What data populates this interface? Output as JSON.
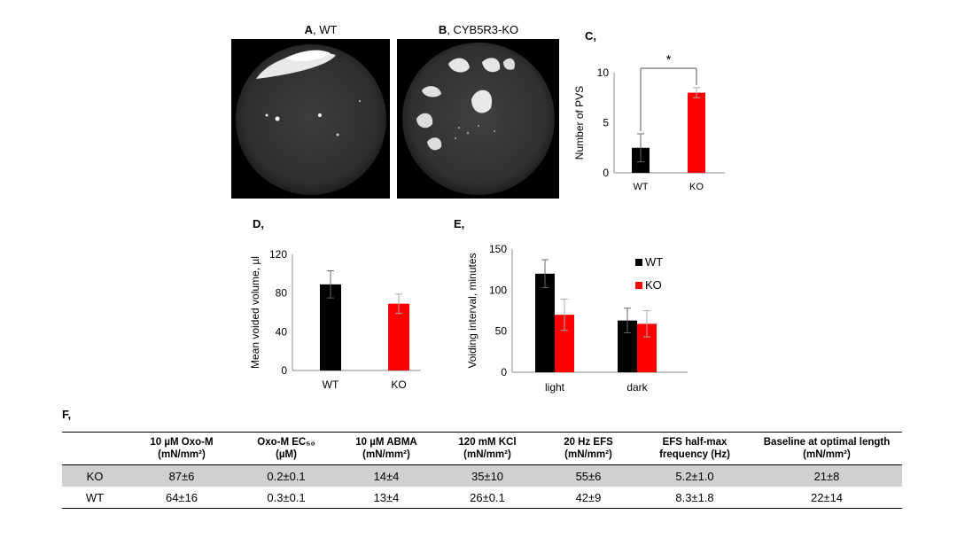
{
  "panels": {
    "a": {
      "letter": "A",
      "rest": ", WT"
    },
    "b": {
      "letter": "B",
      "rest": ", CYB5R3-KO"
    },
    "c": {
      "label": "C,"
    },
    "d": {
      "label": "D,"
    },
    "e": {
      "label": "E,"
    },
    "f": {
      "label": "F,"
    }
  },
  "chart_data": [
    {
      "panel": "C",
      "type": "bar",
      "categories": [
        "WT",
        "KO"
      ],
      "values": [
        2.5,
        8.0
      ],
      "errors": [
        1.4,
        0.5
      ],
      "colors": [
        "#000000",
        "#ff0000"
      ],
      "ylabel": "Number of PVS",
      "ylim": [
        0,
        10
      ],
      "yticks": [
        "0",
        "5",
        "10"
      ],
      "annotation": "*",
      "grid": false
    },
    {
      "panel": "D",
      "type": "bar",
      "categories": [
        "WT",
        "KO"
      ],
      "values": [
        89,
        69
      ],
      "errors": [
        14,
        10
      ],
      "colors": [
        "#000000",
        "#ff0000"
      ],
      "ylabel": "Mean voided volume, µl",
      "ylim": [
        0,
        120
      ],
      "yticks": [
        "0",
        "40",
        "80",
        "120"
      ],
      "grid": false
    },
    {
      "panel": "E",
      "type": "bar",
      "categories": [
        "light",
        "dark"
      ],
      "series": [
        {
          "name": "WT",
          "values": [
            120,
            63
          ],
          "errors": [
            17,
            15
          ],
          "color": "#000000"
        },
        {
          "name": "KO",
          "values": [
            70,
            59
          ],
          "errors": [
            19,
            16
          ],
          "color": "#ff0000"
        }
      ],
      "ylabel": "Voiding interval, minutes",
      "ylim": [
        0,
        150
      ],
      "yticks": [
        "0",
        "50",
        "100",
        "150"
      ],
      "legend": "top-right",
      "grid": false
    }
  ],
  "table": {
    "headers": [
      {
        "l1": "",
        "l2": ""
      },
      {
        "l1": "10 µM  Oxo-M",
        "l2": "(mN/mm²)"
      },
      {
        "l1": "Oxo-M EC₅₀",
        "l2": "(µM)"
      },
      {
        "l1": "10 µM ABMA",
        "l2": "(mN/mm²)"
      },
      {
        "l1": "120 mM KCl",
        "l2": "(mN/mm²)"
      },
      {
        "l1": "20 Hz EFS",
        "l2": "(mN/mm²)"
      },
      {
        "l1": "EFS half-max",
        "l2": "frequency (Hz)"
      },
      {
        "l1": "Baseline at optimal length",
        "l2": "(mN/mm²)"
      }
    ],
    "rows": [
      [
        "KO",
        "87±6",
        "0.2±0.1",
        "14±4",
        "35±10",
        "55±6",
        "5.2±1.0",
        "21±8"
      ],
      [
        "WT",
        "64±16",
        "0.3±0.1",
        "13±4",
        "26±0.1",
        "42±9",
        "8.3±1.8",
        "22±14"
      ]
    ]
  }
}
